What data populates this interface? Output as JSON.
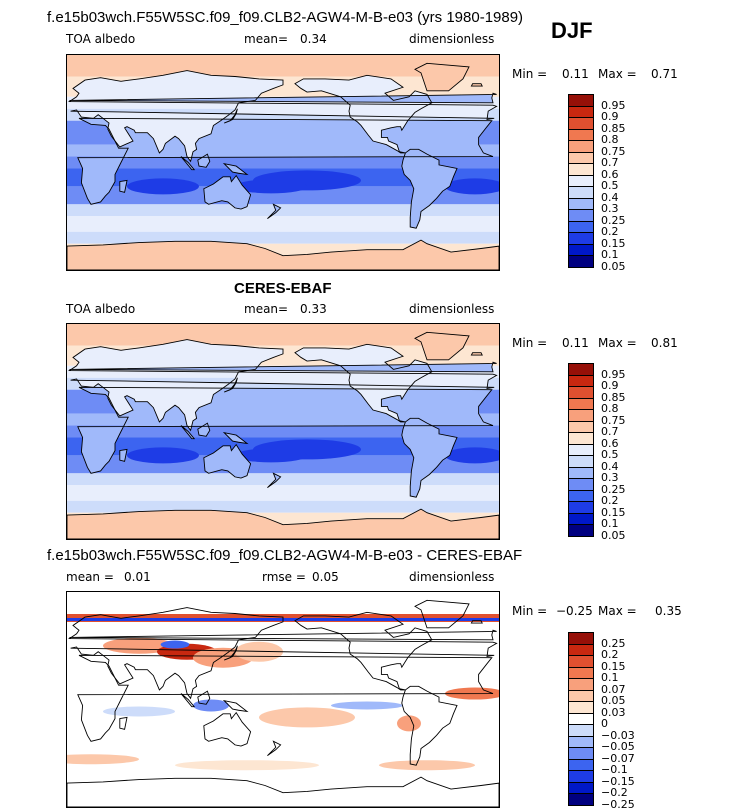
{
  "season": "DJF",
  "palette_abs": [
    "#000080",
    "#0018c8",
    "#1e3ce6",
    "#3c64f0",
    "#6e8cf5",
    "#a0b9fa",
    "#cddcfa",
    "#e8eefc",
    "#fde6d2",
    "#fcc8aa",
    "#f8a07c",
    "#f07850",
    "#e05030",
    "#c82810",
    "#961008"
  ],
  "palette_diff": [
    "#000080",
    "#0018c8",
    "#1e3ce6",
    "#3c64f0",
    "#6e8cf5",
    "#a0b9fa",
    "#cddcfa",
    "#ffffff",
    "#fde6d2",
    "#fcc8aa",
    "#f8a07c",
    "#f07850",
    "#e05030",
    "#c82810",
    "#961008"
  ],
  "panels": [
    {
      "title": "f.e15b03wch.F55W5SC.f09_f09.CLB2-AGW4-M-B-e03 (yrs 1980-1989)",
      "left_text": "TOA albedo",
      "mean_label": "mean=",
      "mean_value": "0.34",
      "units": "dimensionless",
      "min_label": "Min =",
      "min_value": "0.11",
      "max_label": "Max =",
      "max_value": "0.71",
      "levels": [
        "0.95",
        "0.9",
        "0.85",
        "0.8",
        "0.75",
        "0.7",
        "0.6",
        "0.5",
        "0.4",
        "0.3",
        "0.25",
        "0.2",
        "0.15",
        "0.1",
        "0.05"
      ]
    },
    {
      "title": "CERES-EBAF",
      "left_text": "TOA albedo",
      "mean_label": "mean=",
      "mean_value": "0.33",
      "units": "dimensionless",
      "min_label": "Min =",
      "min_value": "0.11",
      "max_label": "Max =",
      "max_value": "0.81",
      "levels": [
        "0.95",
        "0.9",
        "0.85",
        "0.8",
        "0.75",
        "0.7",
        "0.6",
        "0.5",
        "0.4",
        "0.3",
        "0.25",
        "0.2",
        "0.15",
        "0.1",
        "0.05"
      ]
    },
    {
      "title": "f.e15b03wch.F55W5SC.f09_f09.CLB2-AGW4-M-B-e03 - CERES-EBAF",
      "left_text": "mean =",
      "left_value": "0.01",
      "rmse_label": "rmse =",
      "rmse_value": "0.05",
      "units": "dimensionless",
      "min_label": "Min =",
      "min_value": "−0.25",
      "max_label": "Max =",
      "max_value": "0.35",
      "levels": [
        "0.25",
        "0.2",
        "0.15",
        "0.1",
        "0.07",
        "0.05",
        "0.03",
        "0",
        "−0.03",
        "−0.05",
        "−0.07",
        "−0.1",
        "−0.15",
        "−0.2",
        "−0.25"
      ]
    }
  ]
}
